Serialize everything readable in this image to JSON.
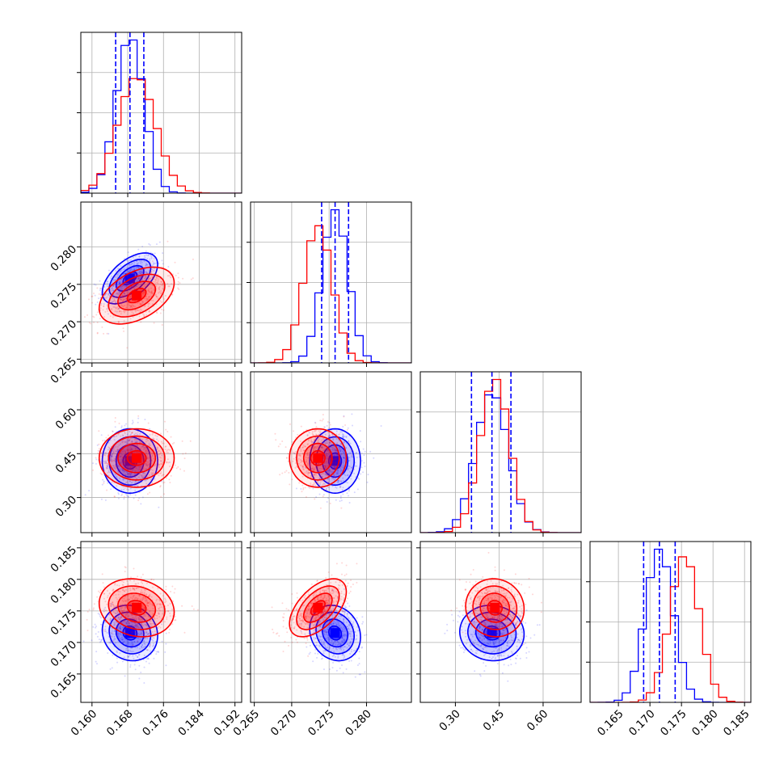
{
  "chart_data": {
    "type": "corner",
    "grid": true,
    "parameters": [
      {
        "range": [
          0.1575,
          0.1935
        ],
        "ticks": [
          0.16,
          0.168,
          0.176,
          0.184,
          0.192
        ],
        "tick_labels": [
          "0.160",
          "0.168",
          "0.176",
          "0.184",
          "0.192"
        ]
      },
      {
        "range": [
          0.2645,
          0.286
        ],
        "ticks": [
          0.265,
          0.27,
          0.275,
          0.28
        ],
        "tick_labels": [
          "0.265",
          "0.270",
          "0.275",
          "0.280"
        ]
      },
      {
        "range": [
          0.18,
          0.73
        ],
        "ticks": [
          0.3,
          0.45,
          0.6
        ],
        "tick_labels": [
          "0.30",
          "0.45",
          "0.60"
        ]
      },
      {
        "range": [
          0.1605,
          0.186
        ],
        "ticks": [
          0.165,
          0.17,
          0.175,
          0.18,
          0.185
        ],
        "tick_labels": [
          "0.165",
          "0.170",
          "0.175",
          "0.180",
          "0.185"
        ]
      }
    ],
    "series": [
      {
        "color": "#0000ff",
        "mean": [
          0.1685,
          0.2758,
          0.425,
          0.1715
        ],
        "sd": [
          0.0031,
          0.0017,
          0.055,
          0.0022
        ],
        "corr": [
          [
            1,
            0.55,
            0.0,
            -0.1
          ],
          [
            0.55,
            1,
            0.0,
            -0.15
          ],
          [
            0.0,
            0.0,
            1,
            -0.05
          ],
          [
            -0.1,
            -0.15,
            -0.05,
            1
          ]
        ]
      },
      {
        "color": "#ff0000",
        "mean": [
          0.17,
          0.2735,
          0.435,
          0.1755
        ],
        "sd": [
          0.0042,
          0.0019,
          0.05,
          0.0023
        ],
        "corr": [
          [
            1,
            0.45,
            0.0,
            -0.15
          ],
          [
            0.45,
            1,
            0.0,
            0.55
          ],
          [
            0.0,
            0.0,
            1,
            -0.05
          ],
          [
            -0.15,
            0.55,
            -0.05,
            1
          ]
        ]
      }
    ],
    "quantile_lines": {
      "color": "#0000ff",
      "values": [
        [
          0.1653,
          0.1685,
          0.1716
        ],
        [
          0.274,
          0.2758,
          0.2776
        ],
        [
          0.355,
          0.425,
          0.49
        ],
        [
          0.169,
          0.1715,
          0.174
        ]
      ]
    },
    "contour_levels": [
      0.5,
      1.0,
      1.5,
      2.0
    ]
  }
}
